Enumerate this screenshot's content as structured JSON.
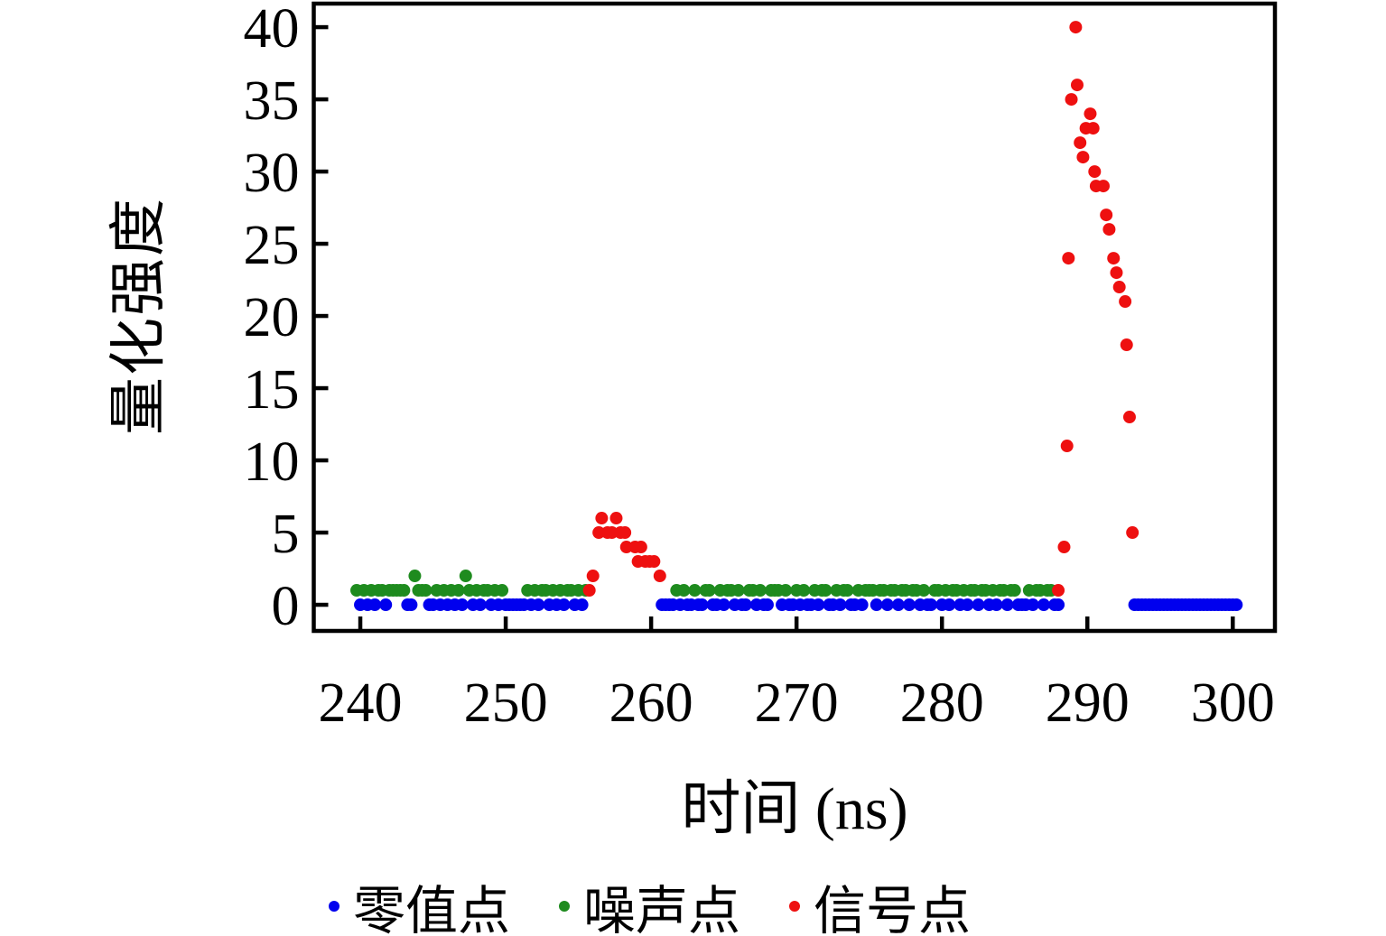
{
  "figure": {
    "background": "#ffffff"
  },
  "chart_data": {
    "type": "scatter",
    "title": "",
    "xlabel": "时间 (ns)",
    "ylabel": "量化强度",
    "xlim": [
      236.8,
      302.9
    ],
    "ylim": [
      -1.81,
      41.63
    ],
    "x_ticks": [
      240,
      250,
      260,
      270,
      280,
      290,
      300
    ],
    "y_ticks": [
      0,
      5,
      10,
      15,
      20,
      25,
      30,
      35,
      40
    ],
    "grid": false,
    "legend_position": "bottom-center",
    "axis_color": "#000000",
    "series": [
      {
        "name": "zero-points",
        "label": "零值点",
        "color": "#0000ee",
        "points": [
          [
            240,
            0
          ],
          [
            240.5,
            0
          ],
          [
            241,
            0
          ],
          [
            241.75,
            0
          ],
          [
            243.25,
            0
          ],
          [
            243.5,
            0
          ],
          [
            244.75,
            0
          ],
          [
            245,
            0
          ],
          [
            245.5,
            0
          ],
          [
            246,
            0
          ],
          [
            246.5,
            0
          ],
          [
            247,
            0
          ],
          [
            247.75,
            0
          ],
          [
            248.25,
            0
          ],
          [
            249,
            0
          ],
          [
            249.5,
            0
          ],
          [
            250,
            0
          ],
          [
            250.25,
            0
          ],
          [
            250.5,
            0
          ],
          [
            250.75,
            0
          ],
          [
            251,
            0
          ],
          [
            251.25,
            0
          ],
          [
            251.75,
            0
          ],
          [
            252.25,
            0
          ],
          [
            253,
            0
          ],
          [
            253.5,
            0
          ],
          [
            254,
            0
          ],
          [
            254.75,
            0
          ],
          [
            255.25,
            0
          ],
          [
            260.75,
            0
          ],
          [
            261,
            0
          ],
          [
            261.25,
            0
          ],
          [
            261.5,
            0
          ],
          [
            262,
            0
          ],
          [
            262.5,
            0
          ],
          [
            262.75,
            0
          ],
          [
            263.25,
            0
          ],
          [
            263.5,
            0
          ],
          [
            264.25,
            0
          ],
          [
            264.5,
            0
          ],
          [
            265,
            0
          ],
          [
            265.75,
            0
          ],
          [
            266.25,
            0
          ],
          [
            266.5,
            0
          ],
          [
            267.25,
            0
          ],
          [
            267.75,
            0
          ],
          [
            268,
            0
          ],
          [
            269,
            0
          ],
          [
            269.5,
            0
          ],
          [
            269.75,
            0
          ],
          [
            270.25,
            0
          ],
          [
            270.75,
            0
          ],
          [
            271,
            0
          ],
          [
            271.5,
            0
          ],
          [
            272.25,
            0
          ],
          [
            272.5,
            0
          ],
          [
            273,
            0
          ],
          [
            273.75,
            0
          ],
          [
            274,
            0
          ],
          [
            274.5,
            0
          ],
          [
            275.5,
            0
          ],
          [
            276.25,
            0
          ],
          [
            277,
            0
          ],
          [
            277.75,
            0
          ],
          [
            278.5,
            0
          ],
          [
            279,
            0
          ],
          [
            279.25,
            0
          ],
          [
            280,
            0
          ],
          [
            280.5,
            0
          ],
          [
            281.25,
            0
          ],
          [
            281.75,
            0
          ],
          [
            282.5,
            0
          ],
          [
            283.25,
            0
          ],
          [
            283.75,
            0
          ],
          [
            284.5,
            0
          ],
          [
            285.25,
            0
          ],
          [
            285.5,
            0
          ],
          [
            285.75,
            0
          ],
          [
            286.25,
            0
          ],
          [
            287,
            0
          ],
          [
            287.75,
            0
          ],
          [
            288,
            0
          ],
          [
            293.25,
            0
          ],
          [
            293.5,
            0
          ],
          [
            293.75,
            0
          ],
          [
            294,
            0
          ],
          [
            294.25,
            0
          ],
          [
            294.5,
            0
          ],
          [
            294.75,
            0
          ],
          [
            295,
            0
          ],
          [
            295.25,
            0
          ],
          [
            295.5,
            0
          ],
          [
            295.75,
            0
          ],
          [
            296,
            0
          ],
          [
            296.25,
            0
          ],
          [
            296.5,
            0
          ],
          [
            296.75,
            0
          ],
          [
            297,
            0
          ],
          [
            297.25,
            0
          ],
          [
            297.5,
            0
          ],
          [
            297.75,
            0
          ],
          [
            298,
            0
          ],
          [
            298.25,
            0
          ],
          [
            298.5,
            0
          ],
          [
            298.75,
            0
          ],
          [
            299,
            0
          ],
          [
            299.25,
            0
          ],
          [
            299.5,
            0
          ],
          [
            299.75,
            0
          ],
          [
            300,
            0
          ],
          [
            300.25,
            0
          ]
        ]
      },
      {
        "name": "noise-points",
        "label": "噪声点",
        "color": "#1e8b1e",
        "points": [
          [
            239.75,
            1
          ],
          [
            240.25,
            1
          ],
          [
            240.75,
            1
          ],
          [
            241.25,
            1
          ],
          [
            241.5,
            1
          ],
          [
            242,
            1
          ],
          [
            242.25,
            1
          ],
          [
            242.5,
            1
          ],
          [
            242.75,
            1
          ],
          [
            243,
            1
          ],
          [
            243.75,
            2
          ],
          [
            244,
            1
          ],
          [
            244.25,
            1
          ],
          [
            244.5,
            1
          ],
          [
            245.25,
            1
          ],
          [
            245.75,
            1
          ],
          [
            246.25,
            1
          ],
          [
            246.75,
            1
          ],
          [
            247.25,
            2
          ],
          [
            247.5,
            1
          ],
          [
            248,
            1
          ],
          [
            248.5,
            1
          ],
          [
            248.75,
            1
          ],
          [
            249.25,
            1
          ],
          [
            249.75,
            1
          ],
          [
            251.5,
            1
          ],
          [
            252,
            1
          ],
          [
            252.5,
            1
          ],
          [
            252.75,
            1
          ],
          [
            253.25,
            1
          ],
          [
            253.75,
            1
          ],
          [
            254.25,
            1
          ],
          [
            254.5,
            1
          ],
          [
            255,
            1
          ],
          [
            255.5,
            1
          ],
          [
            261.75,
            1
          ],
          [
            262.25,
            1
          ],
          [
            263,
            1
          ],
          [
            263.75,
            1
          ],
          [
            264,
            1
          ],
          [
            264.75,
            1
          ],
          [
            265.25,
            1
          ],
          [
            265.5,
            1
          ],
          [
            266,
            1
          ],
          [
            266.75,
            1
          ],
          [
            267,
            1
          ],
          [
            267.5,
            1
          ],
          [
            268.25,
            1
          ],
          [
            268.5,
            1
          ],
          [
            268.75,
            1
          ],
          [
            269.25,
            1
          ],
          [
            270,
            1
          ],
          [
            270.5,
            1
          ],
          [
            271.25,
            1
          ],
          [
            271.75,
            1
          ],
          [
            272,
            1
          ],
          [
            272.75,
            1
          ],
          [
            273.25,
            1
          ],
          [
            273.5,
            1
          ],
          [
            274.25,
            1
          ],
          [
            274.75,
            1
          ],
          [
            275,
            1
          ],
          [
            275.25,
            1
          ],
          [
            275.75,
            1
          ],
          [
            276,
            1
          ],
          [
            276.5,
            1
          ],
          [
            276.75,
            1
          ],
          [
            277.25,
            1
          ],
          [
            277.5,
            1
          ],
          [
            278,
            1
          ],
          [
            278.25,
            1
          ],
          [
            278.75,
            1
          ],
          [
            279.5,
            1
          ],
          [
            279.75,
            1
          ],
          [
            280.25,
            1
          ],
          [
            280.75,
            1
          ],
          [
            281,
            1
          ],
          [
            281.5,
            1
          ],
          [
            282,
            1
          ],
          [
            282.25,
            1
          ],
          [
            282.75,
            1
          ],
          [
            283,
            1
          ],
          [
            283.5,
            1
          ],
          [
            284,
            1
          ],
          [
            284.25,
            1
          ],
          [
            284.75,
            1
          ],
          [
            285,
            1
          ],
          [
            286,
            1
          ],
          [
            286.5,
            1
          ],
          [
            286.75,
            1
          ],
          [
            287.25,
            1
          ],
          [
            287.5,
            1
          ]
        ]
      },
      {
        "name": "signal-points",
        "label": "信号点",
        "color": "#ee1010",
        "points": [
          [
            255.75,
            1
          ],
          [
            256,
            2
          ],
          [
            256.4,
            5
          ],
          [
            256.6,
            6
          ],
          [
            257,
            5
          ],
          [
            257.3,
            5
          ],
          [
            257.6,
            6
          ],
          [
            257.9,
            5
          ],
          [
            258.2,
            5
          ],
          [
            258.3,
            4
          ],
          [
            258.9,
            4
          ],
          [
            259.1,
            3
          ],
          [
            259.3,
            4
          ],
          [
            259.6,
            3
          ],
          [
            259.9,
            3
          ],
          [
            260.2,
            3
          ],
          [
            260.6,
            2
          ],
          [
            288,
            1
          ],
          [
            288.4,
            4
          ],
          [
            288.6,
            11
          ],
          [
            288.7,
            24
          ],
          [
            288.9,
            35
          ],
          [
            289.2,
            40
          ],
          [
            289.3,
            36
          ],
          [
            289.5,
            32
          ],
          [
            289.7,
            31
          ],
          [
            289.9,
            33
          ],
          [
            290.2,
            34
          ],
          [
            290.4,
            33
          ],
          [
            290.5,
            30
          ],
          [
            290.6,
            29
          ],
          [
            291.1,
            29
          ],
          [
            291.3,
            27
          ],
          [
            291.5,
            26
          ],
          [
            291.8,
            24
          ],
          [
            292,
            23
          ],
          [
            292.2,
            22
          ],
          [
            292.6,
            21
          ],
          [
            292.7,
            18
          ],
          [
            292.9,
            13
          ],
          [
            293.1,
            5
          ]
        ]
      }
    ]
  }
}
